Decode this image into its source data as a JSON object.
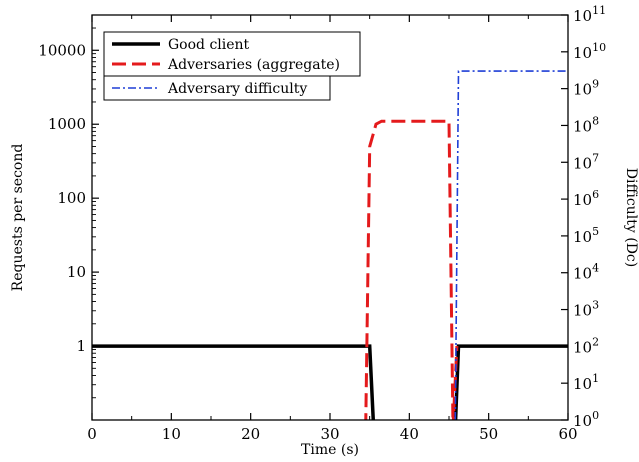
{
  "chart_data": {
    "type": "line",
    "xlabel": "Time (s)",
    "ylabel_left": "Requests per second",
    "ylabel_right": "Difficulty (Dc)",
    "x_axis": {
      "range": [
        0,
        60
      ],
      "ticks": [
        0,
        10,
        20,
        30,
        40,
        50,
        60
      ],
      "tick_labels": [
        "0",
        "10",
        "20",
        "30",
        "40",
        "50",
        "60"
      ]
    },
    "y_left_axis": {
      "scale": "log",
      "range": [
        0.1,
        30000
      ],
      "ticks": [
        1,
        10,
        100,
        1000,
        10000
      ],
      "tick_labels": [
        "1",
        "10",
        "100",
        "1000",
        "10000"
      ]
    },
    "y_right_axis": {
      "scale": "log",
      "range": [
        1,
        100000000000
      ],
      "ticks": [
        1,
        10,
        100,
        1000,
        10000,
        100000,
        1000000,
        10000000,
        100000000,
        1000000000,
        10000000000,
        100000000000
      ],
      "tick_base": "10",
      "tick_exponents": [
        "0",
        "1",
        "2",
        "3",
        "4",
        "5",
        "6",
        "7",
        "8",
        "9",
        "10",
        "11"
      ]
    },
    "legend": {
      "position": "top-left",
      "entries": [
        "Good client",
        "Adversaries (aggregate)",
        "Adversary difficulty"
      ]
    },
    "series": [
      {
        "name": "Good client",
        "axis": "left",
        "color": "#000000",
        "style": "solid",
        "points": [
          [
            0,
            1
          ],
          [
            35,
            1
          ],
          [
            35.5,
            0.08
          ],
          [
            45.8,
            0.08
          ],
          [
            46.2,
            1
          ],
          [
            60,
            1
          ]
        ]
      },
      {
        "name": "Adversaries (aggregate)",
        "axis": "left",
        "color": "#e41a1c",
        "style": "dashed",
        "points": [
          [
            34.5,
            0.08
          ],
          [
            35,
            500
          ],
          [
            35.8,
            1000
          ],
          [
            36.5,
            1100
          ],
          [
            45,
            1100
          ],
          [
            45.5,
            0.08
          ],
          [
            46,
            1
          ]
        ]
      },
      {
        "name": "Adversary difficulty",
        "axis": "right",
        "color": "#1f3fd6",
        "style": "dashdot",
        "points": [
          [
            45.8,
            1
          ],
          [
            46.2,
            3000000000
          ],
          [
            60,
            3000000000
          ]
        ]
      }
    ]
  }
}
